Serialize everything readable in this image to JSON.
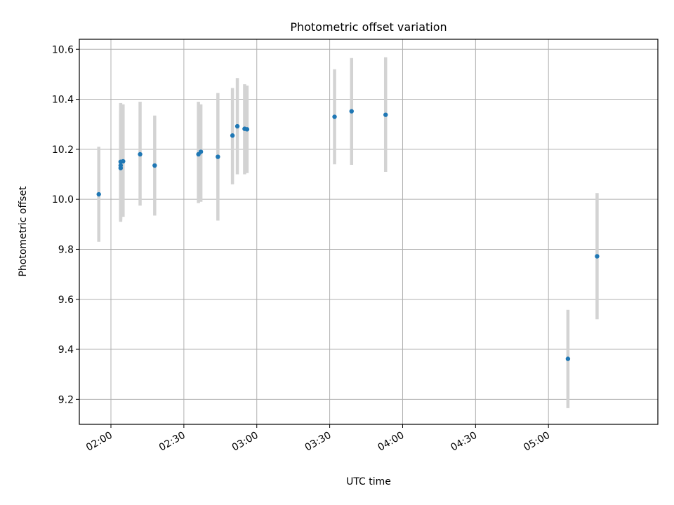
{
  "chart_data": {
    "type": "scatter",
    "title": "Photometric offset variation",
    "xlabel": "UTC time",
    "ylabel": "Photometric offset",
    "xlim": [
      "01:47",
      "05:45"
    ],
    "ylim": [
      9.1,
      10.64
    ],
    "xticks": [
      "02:00",
      "02:30",
      "03:00",
      "03:30",
      "04:00",
      "04:30",
      "05:00"
    ],
    "yticks": [
      "9.2",
      "9.4",
      "9.6",
      "9.8",
      "10.0",
      "10.2",
      "10.4",
      "10.6"
    ],
    "grid": true,
    "colors": {
      "points": "#1f77b4",
      "errorbars": "#d3d3d3",
      "grid": "#b0b0b0"
    },
    "series": [
      {
        "points": [
          {
            "x": "01:55",
            "y": 10.02,
            "ylow": 9.83,
            "yhigh": 10.21
          },
          {
            "x": "02:04",
            "y": 10.135,
            "ylow": 9.915,
            "yhigh": 10.355
          },
          {
            "x": "02:04",
            "y": 10.125,
            "ylow": 9.91,
            "yhigh": 10.34
          },
          {
            "x": "02:04",
            "y": 10.15,
            "ylow": 9.92,
            "yhigh": 10.385
          },
          {
            "x": "02:05",
            "y": 10.152,
            "ylow": 9.93,
            "yhigh": 10.38
          },
          {
            "x": "02:12",
            "y": 10.18,
            "ylow": 9.975,
            "yhigh": 10.39
          },
          {
            "x": "02:18",
            "y": 10.135,
            "ylow": 9.935,
            "yhigh": 10.335
          },
          {
            "x": "02:36",
            "y": 10.18,
            "ylow": 9.985,
            "yhigh": 10.39
          },
          {
            "x": "02:37",
            "y": 10.19,
            "ylow": 9.99,
            "yhigh": 10.38
          },
          {
            "x": "02:44",
            "y": 10.17,
            "ylow": 9.915,
            "yhigh": 10.425
          },
          {
            "x": "02:50",
            "y": 10.255,
            "ylow": 10.06,
            "yhigh": 10.445
          },
          {
            "x": "02:52",
            "y": 10.292,
            "ylow": 10.1,
            "yhigh": 10.485
          },
          {
            "x": "02:55",
            "y": 10.282,
            "ylow": 10.1,
            "yhigh": 10.46
          },
          {
            "x": "02:56",
            "y": 10.28,
            "ylow": 10.105,
            "yhigh": 10.455
          },
          {
            "x": "03:32",
            "y": 10.33,
            "ylow": 10.14,
            "yhigh": 10.52
          },
          {
            "x": "03:39",
            "y": 10.352,
            "ylow": 10.138,
            "yhigh": 10.565
          },
          {
            "x": "03:53",
            "y": 10.338,
            "ylow": 10.11,
            "yhigh": 10.568
          },
          {
            "x": "05:08",
            "y": 9.362,
            "ylow": 9.165,
            "yhigh": 9.558
          },
          {
            "x": "05:20",
            "y": 9.772,
            "ylow": 9.52,
            "yhigh": 10.025
          }
        ]
      }
    ]
  }
}
